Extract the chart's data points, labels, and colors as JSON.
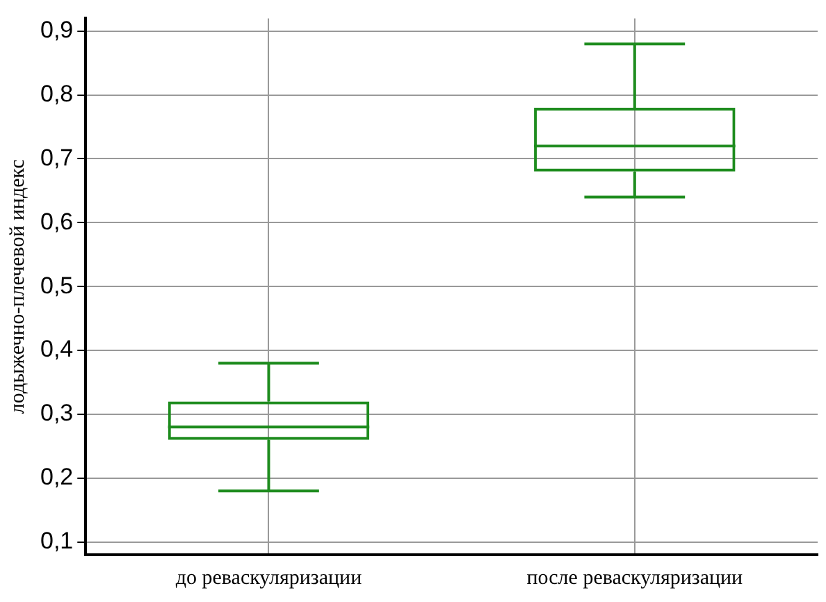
{
  "chart_data": {
    "type": "box",
    "ylabel": "лодыжечно-плечевой индекс",
    "categories": [
      "до реваскуляризации",
      "после реваскуляризации"
    ],
    "color": "#1e8c1e",
    "boxes": [
      {
        "low": 0.18,
        "q1": 0.26,
        "median": 0.28,
        "q3": 0.32,
        "high": 0.38
      },
      {
        "low": 0.64,
        "q1": 0.68,
        "median": 0.72,
        "q3": 0.78,
        "high": 0.88
      }
    ],
    "ylim": [
      0.08,
      0.92
    ],
    "yticks": [
      {
        "value": 0.1,
        "label": "0,1"
      },
      {
        "value": 0.2,
        "label": "0,2"
      },
      {
        "value": 0.3,
        "label": "0,3"
      },
      {
        "value": 0.4,
        "label": "0,4"
      },
      {
        "value": 0.5,
        "label": "0,5"
      },
      {
        "value": 0.6,
        "label": "0,6"
      },
      {
        "value": 0.7,
        "label": "0,7"
      },
      {
        "value": 0.8,
        "label": "0,8"
      },
      {
        "value": 0.9,
        "label": "0,9"
      }
    ],
    "grid": true,
    "legend": false
  }
}
